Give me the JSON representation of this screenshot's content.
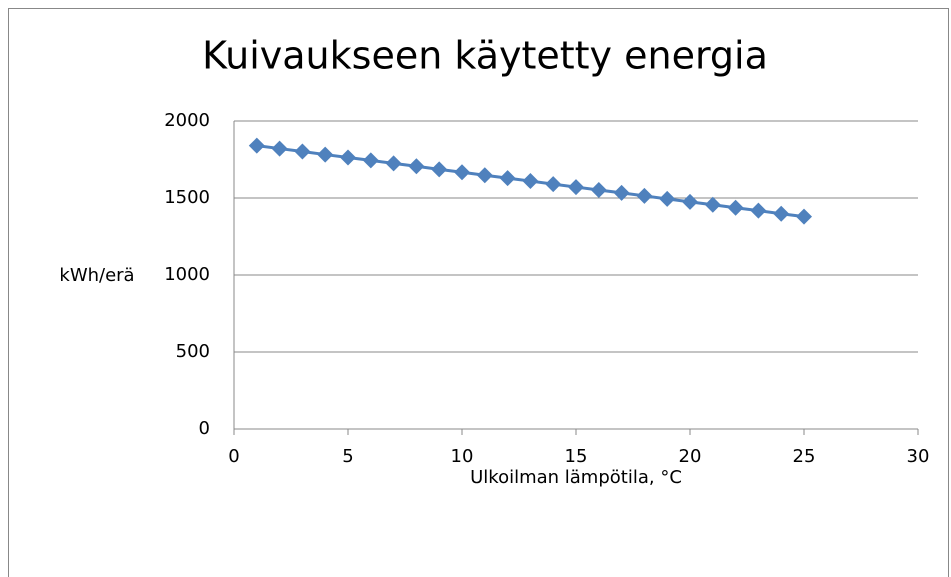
{
  "chart_data": {
    "type": "scatter",
    "title": "Kuivaukseen käytetty energia",
    "x_label": "Ulkoilman lämpötila, °C",
    "y_label": "kWh/erä",
    "x": [
      1,
      2,
      3,
      4,
      5,
      6,
      7,
      8,
      9,
      10,
      11,
      12,
      13,
      14,
      15,
      16,
      17,
      18,
      19,
      20,
      21,
      22,
      23,
      24,
      25
    ],
    "series": [
      {
        "color": "#4f81bd",
        "values": [
          1840,
          1821,
          1802,
          1782,
          1763,
          1744,
          1725,
          1706,
          1686,
          1667,
          1648,
          1629,
          1610,
          1590,
          1571,
          1552,
          1533,
          1514,
          1494,
          1475,
          1456,
          1437,
          1418,
          1398,
          1379
        ]
      }
    ],
    "xlim": [
      0,
      30
    ],
    "xticks": [
      0,
      5,
      10,
      15,
      20,
      25,
      30
    ],
    "ylim": [
      0,
      2000
    ],
    "yticks": [
      0,
      500,
      1000,
      1500,
      2000
    ],
    "grid": true,
    "lines": true
  }
}
